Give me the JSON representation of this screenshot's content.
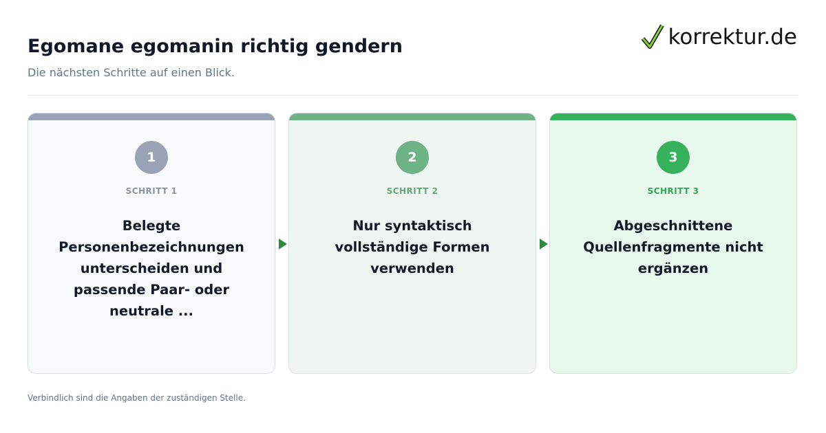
{
  "header": {
    "title": "Egomane egomanin richtig gendern",
    "subtitle": "Die nächsten Schritte auf einen Blick.",
    "logo": "korrektur.de"
  },
  "steps": [
    {
      "number": "1",
      "label": "SCHRITT 1",
      "text": "Belegte Personenbezeichnungen unterscheiden und passende Paar- oder neutrale ..."
    },
    {
      "number": "2",
      "label": "SCHRITT 2",
      "text": "Nur syntaktisch vollständige Formen verwenden"
    },
    {
      "number": "3",
      "label": "SCHRITT 3",
      "text": "Abgeschnittene Quellenfragmente nicht ergänzen"
    }
  ],
  "footer": "Verbindlich sind die Angaben der zuständigen Stelle."
}
